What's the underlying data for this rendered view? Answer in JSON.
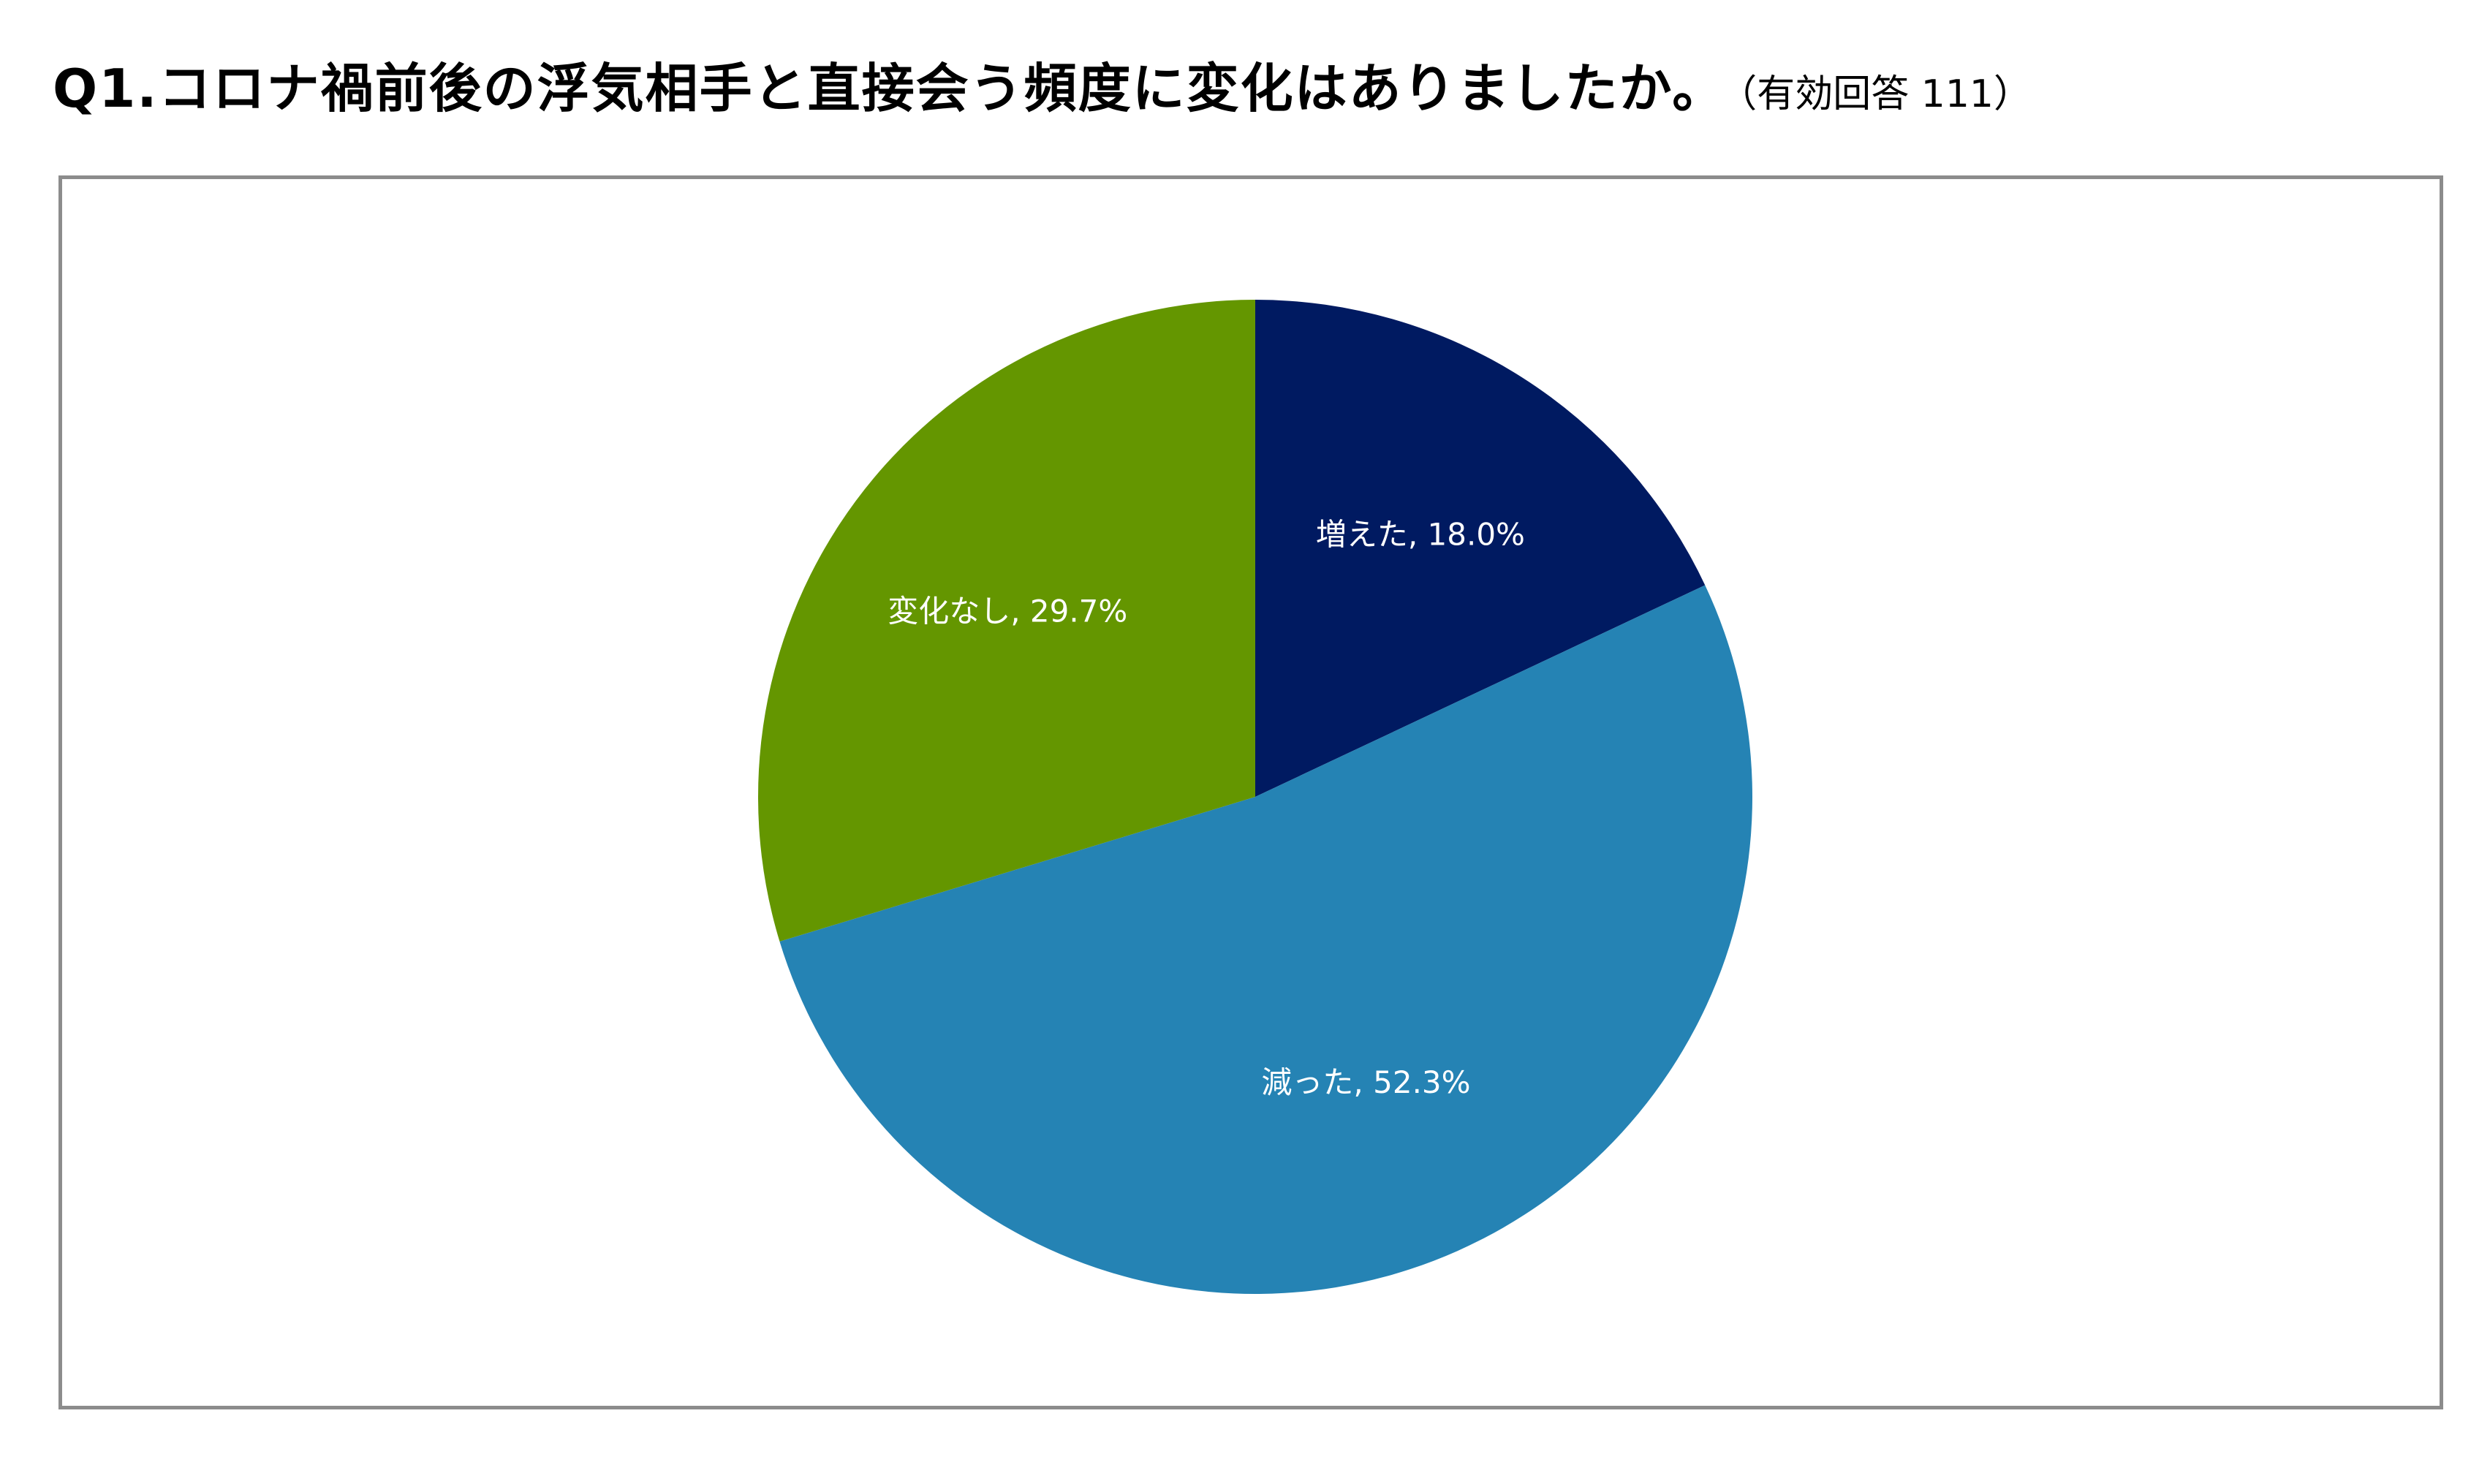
{
  "title": {
    "main": "Q1.コロナ禍前後の浮気相手と直接会う頻度に変化はありましたか。",
    "sub": "（有効回答 111）"
  },
  "chart_data": {
    "type": "pie",
    "start_angle_deg": 0,
    "direction": "clockwise",
    "slices": [
      {
        "label": "増えた",
        "value": 18.0,
        "display": "増えた, 18.0%",
        "color": "#001A61"
      },
      {
        "label": "減った",
        "value": 52.3,
        "display": "減った, 52.3%",
        "color": "#2583B4"
      },
      {
        "label": "変化なし",
        "value": 29.7,
        "display": "変化なし, 29.7%",
        "color": "#649600"
      }
    ],
    "legend": "none",
    "data_labels": "inside"
  }
}
